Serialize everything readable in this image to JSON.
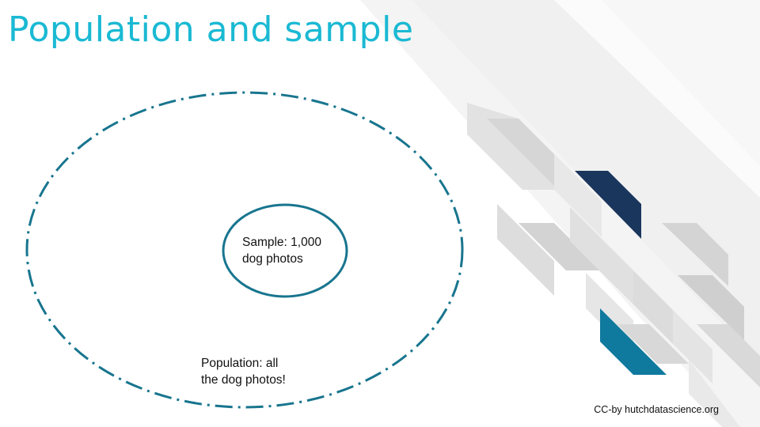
{
  "slide": {
    "title": "Population and sample",
    "credit": "CC-by hutchdatascience.org"
  },
  "diagram": {
    "population": {
      "label": "Population: all\nthe dog photos!",
      "line_style": "dash-dot"
    },
    "sample": {
      "label": "Sample: 1,000\ndog photos",
      "line_style": "solid"
    }
  },
  "colors": {
    "title": "#1ab9d3",
    "circle_stroke": "#18758e",
    "navy_block": "#1b365d",
    "teal_block": "#0f7a9e",
    "gray_block": "#d9d9d9",
    "light_gray_block": "#e6e6e6"
  }
}
